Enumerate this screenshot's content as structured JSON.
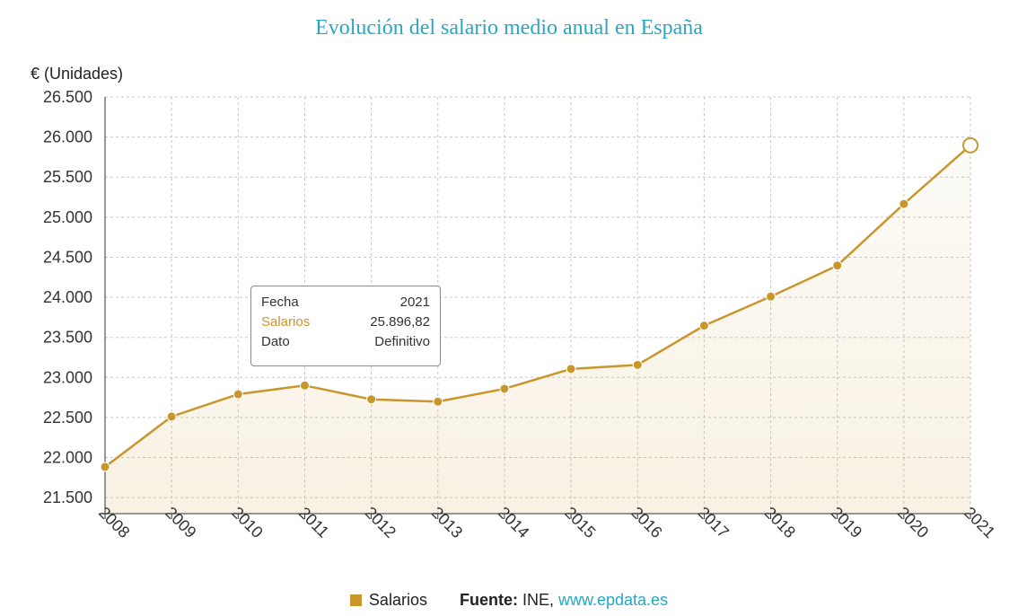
{
  "chart_data": {
    "type": "area",
    "title": "Evolución del salario medio anual en España",
    "ylabel": "€ (Unidades)",
    "xlabel": "",
    "x": [
      "2008",
      "2009",
      "2010",
      "2011",
      "2012",
      "2013",
      "2014",
      "2015",
      "2016",
      "2017",
      "2018",
      "2019",
      "2020",
      "2021"
    ],
    "series": [
      {
        "name": "Salarios",
        "values": [
          21883.42,
          22511.47,
          22790.2,
          22899.35,
          22726.44,
          22697.86,
          22858.17,
          23106.3,
          23156.34,
          23646.5,
          24009.12,
          24395.98,
          25165.51,
          25896.82
        ]
      }
    ],
    "ylim": [
      21300,
      26500
    ],
    "yticks": [
      21500,
      22000,
      22500,
      23000,
      23500,
      24000,
      24500,
      25000,
      25500,
      26000,
      26500
    ],
    "ytick_labels": [
      "21.500",
      "22.000",
      "22.500",
      "23.000",
      "23.500",
      "24.000",
      "24.500",
      "25.000",
      "25.500",
      "26.000",
      "26.500"
    ],
    "grid": true,
    "color": "#c9962c",
    "highlighted_index": 13
  },
  "tooltip": {
    "rows": [
      {
        "label": "Fecha",
        "value": "2021"
      },
      {
        "label": "Salarios",
        "value": "25.896,82"
      },
      {
        "label": "Dato",
        "value": "Definitivo"
      }
    ]
  },
  "legend": {
    "series_label": "Salarios",
    "source_label": "Fuente:",
    "source_org": "INE,",
    "source_link": "www.epdata.es"
  }
}
